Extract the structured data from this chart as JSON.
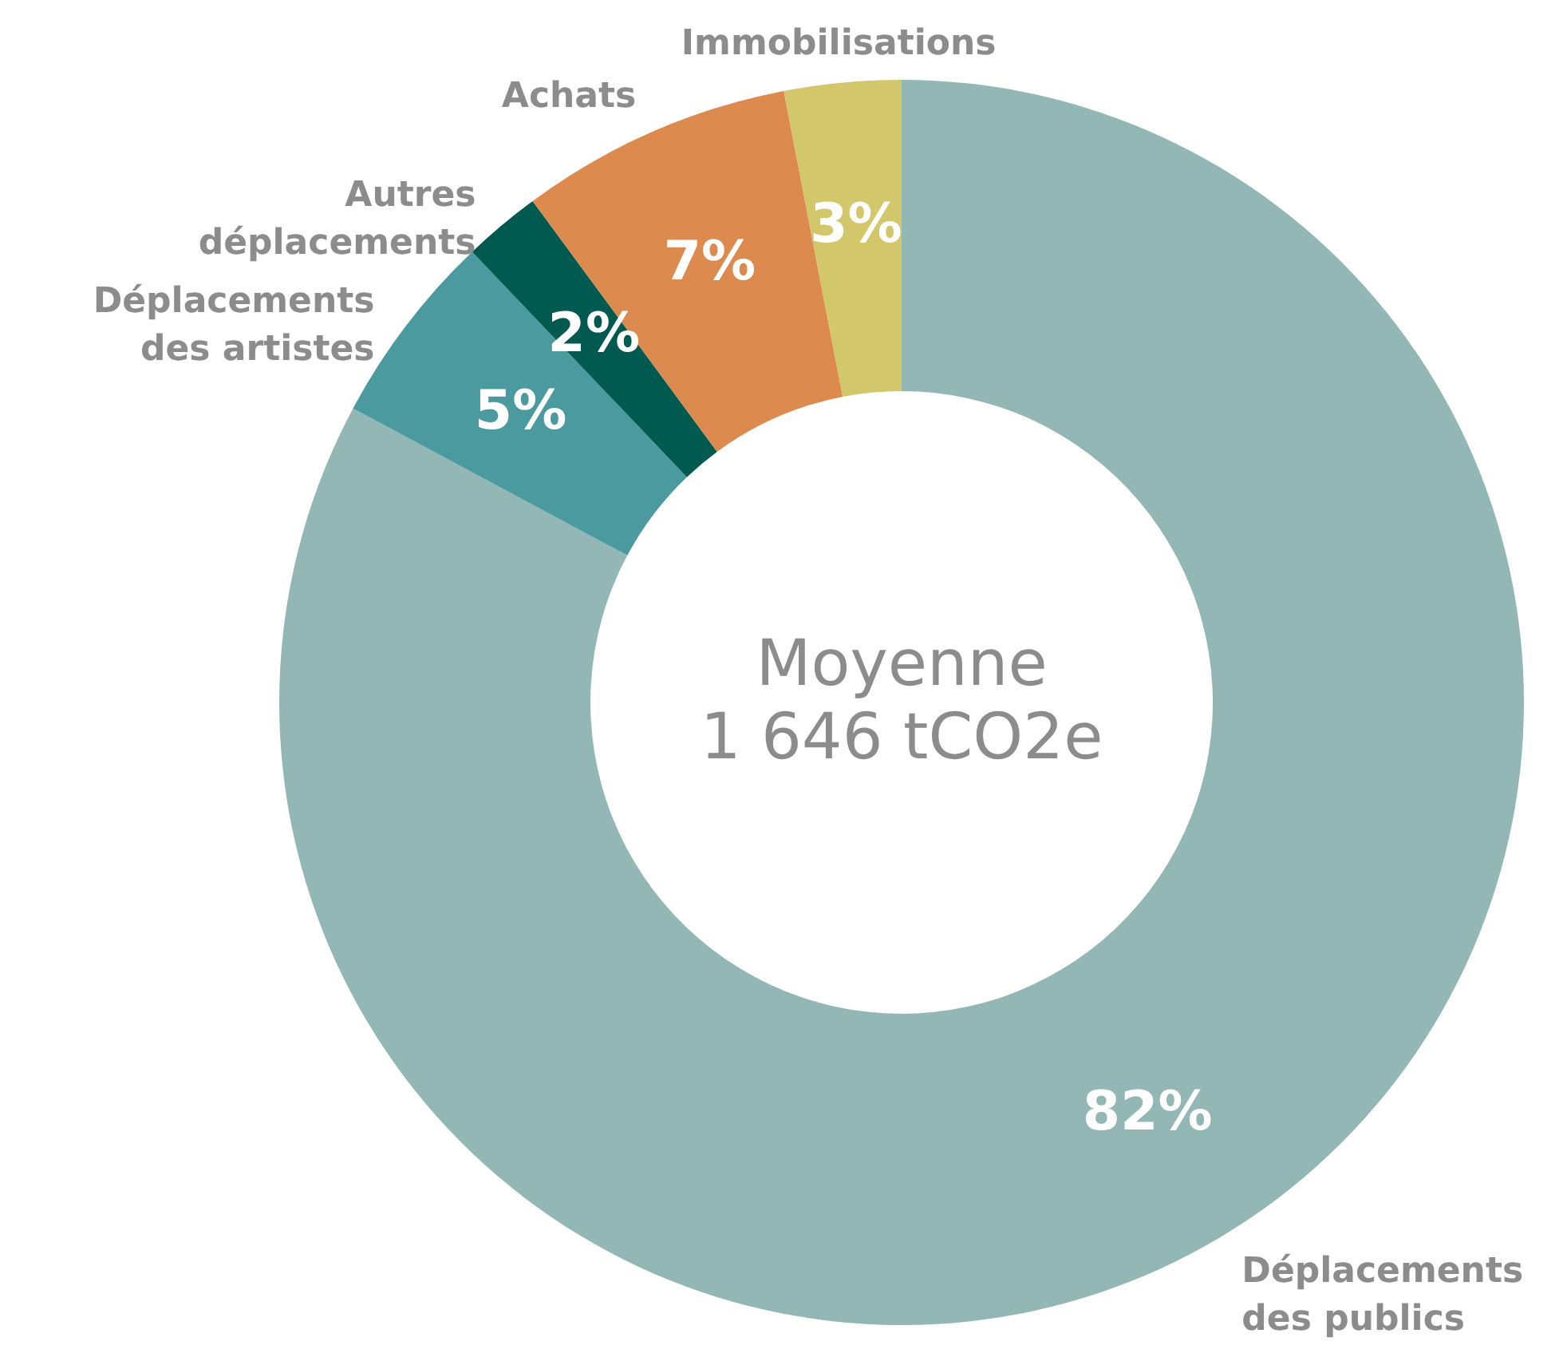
{
  "chart_data": {
    "type": "donut",
    "categories": [
      "Déplacements des publics",
      "Déplacements des artistes",
      "Autres déplacements",
      "Achats",
      "Immobilisations"
    ],
    "values": [
      82,
      5,
      2,
      7,
      3
    ],
    "value_labels": [
      "82%",
      "5%",
      "2%",
      "7%",
      "3%"
    ],
    "colors": [
      "#92b7b4",
      "#4a9aa0",
      "#005a50",
      "#dc8a4e",
      "#d3c76c"
    ],
    "annotations": [
      "Moyenne",
      "1 646 tCO2e"
    ]
  }
}
